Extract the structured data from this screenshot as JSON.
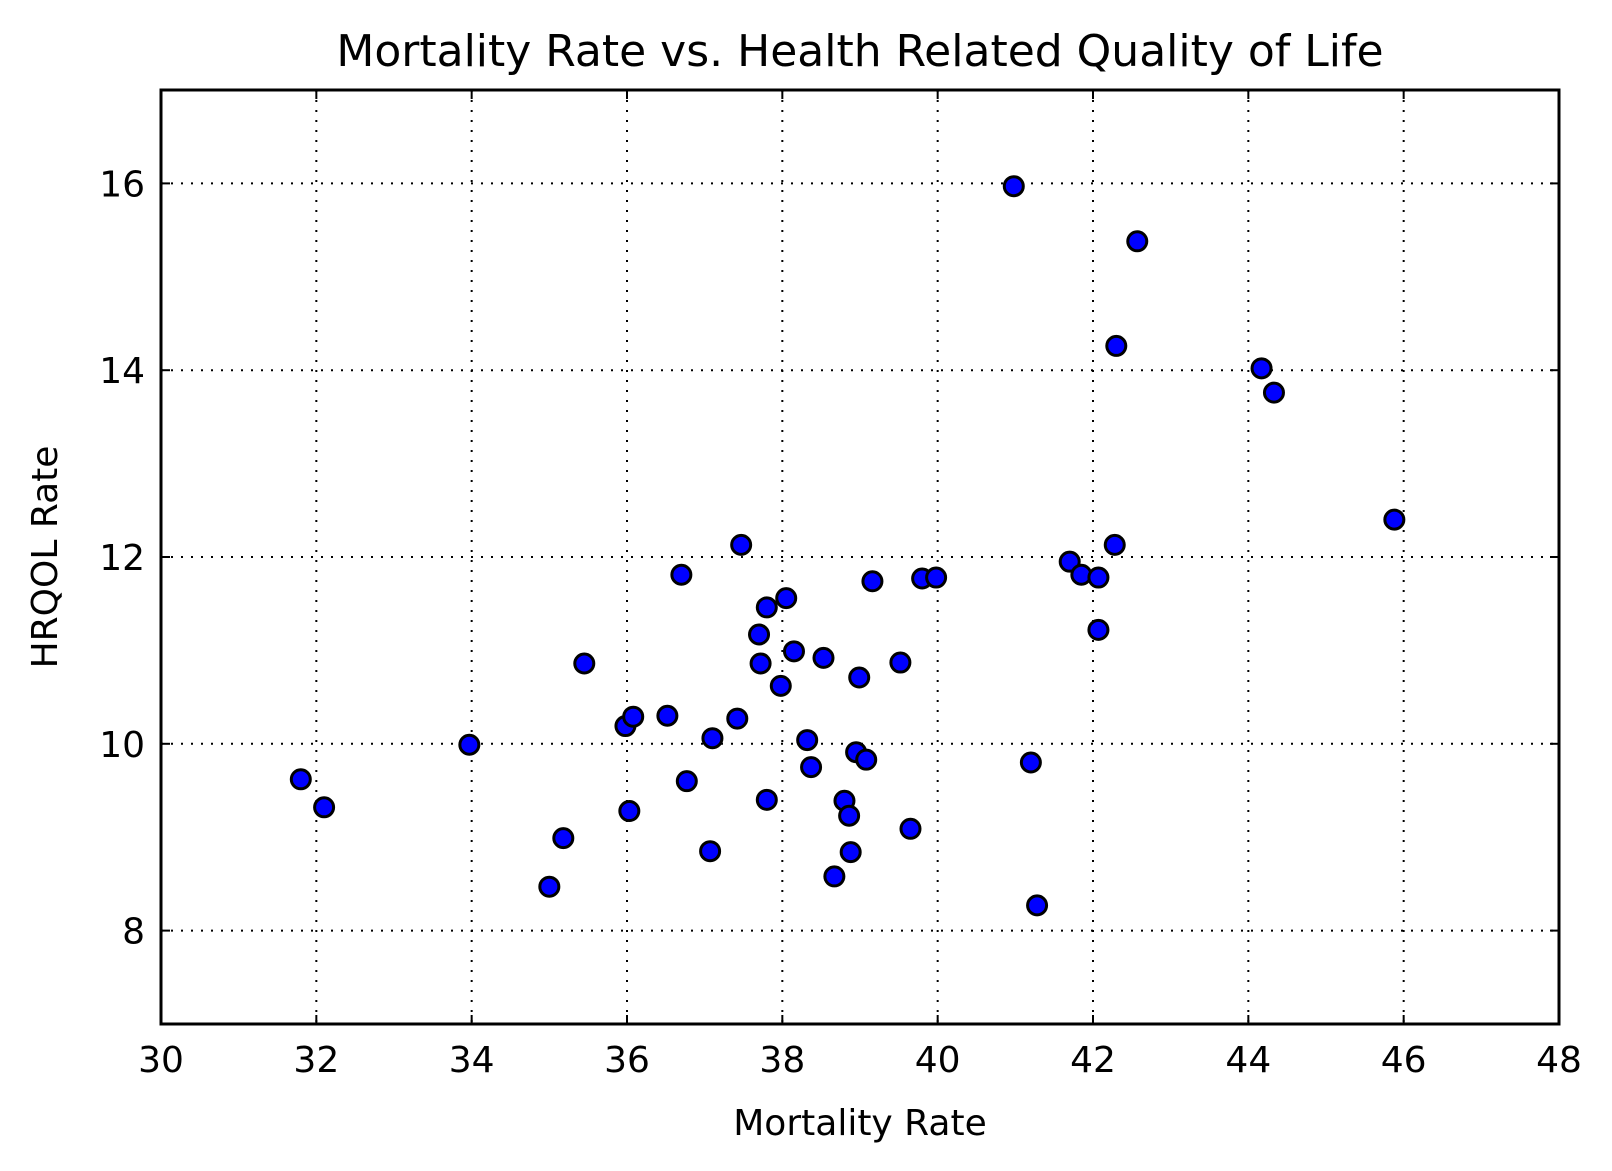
{
  "chart_data": {
    "type": "scatter",
    "title": "Mortality Rate vs. Health Related Quality of Life",
    "xlabel": "Mortality Rate",
    "ylabel": "HRQOL Rate",
    "xlim": [
      30,
      48
    ],
    "ylim": [
      7,
      17
    ],
    "xticks": [
      30,
      32,
      34,
      36,
      38,
      40,
      42,
      44,
      46,
      48
    ],
    "yticks": [
      8,
      10,
      12,
      14,
      16
    ],
    "grid": true,
    "legend": "none",
    "marker_color": "#0000ff",
    "marker_edge_color": "#000000",
    "points": [
      {
        "x": 31.8,
        "y": 9.62
      },
      {
        "x": 32.1,
        "y": 9.32
      },
      {
        "x": 33.97,
        "y": 9.99
      },
      {
        "x": 35.0,
        "y": 8.47
      },
      {
        "x": 35.18,
        "y": 8.99
      },
      {
        "x": 35.45,
        "y": 10.86
      },
      {
        "x": 35.98,
        "y": 10.19
      },
      {
        "x": 36.08,
        "y": 10.29
      },
      {
        "x": 36.03,
        "y": 9.28
      },
      {
        "x": 36.52,
        "y": 10.3
      },
      {
        "x": 36.7,
        "y": 11.81
      },
      {
        "x": 36.77,
        "y": 9.6
      },
      {
        "x": 37.07,
        "y": 8.85
      },
      {
        "x": 37.1,
        "y": 10.06
      },
      {
        "x": 37.42,
        "y": 10.27
      },
      {
        "x": 37.47,
        "y": 12.13
      },
      {
        "x": 37.7,
        "y": 11.17
      },
      {
        "x": 37.72,
        "y": 10.86
      },
      {
        "x": 37.8,
        "y": 11.46
      },
      {
        "x": 37.8,
        "y": 9.4
      },
      {
        "x": 37.98,
        "y": 10.62
      },
      {
        "x": 38.05,
        "y": 11.56
      },
      {
        "x": 38.15,
        "y": 10.99
      },
      {
        "x": 38.32,
        "y": 10.04
      },
      {
        "x": 38.37,
        "y": 9.75
      },
      {
        "x": 38.53,
        "y": 10.92
      },
      {
        "x": 38.67,
        "y": 8.58
      },
      {
        "x": 38.8,
        "y": 9.39
      },
      {
        "x": 38.86,
        "y": 9.23
      },
      {
        "x": 38.88,
        "y": 8.84
      },
      {
        "x": 38.95,
        "y": 9.91
      },
      {
        "x": 38.99,
        "y": 10.71
      },
      {
        "x": 39.08,
        "y": 9.83
      },
      {
        "x": 39.16,
        "y": 11.74
      },
      {
        "x": 39.52,
        "y": 10.87
      },
      {
        "x": 39.65,
        "y": 9.09
      },
      {
        "x": 39.8,
        "y": 11.77
      },
      {
        "x": 39.98,
        "y": 11.78
      },
      {
        "x": 40.98,
        "y": 15.97
      },
      {
        "x": 41.2,
        "y": 9.8
      },
      {
        "x": 41.28,
        "y": 8.27
      },
      {
        "x": 41.7,
        "y": 11.95
      },
      {
        "x": 41.85,
        "y": 11.81
      },
      {
        "x": 42.07,
        "y": 11.78
      },
      {
        "x": 42.07,
        "y": 11.22
      },
      {
        "x": 42.28,
        "y": 12.13
      },
      {
        "x": 42.3,
        "y": 14.26
      },
      {
        "x": 42.57,
        "y": 15.38
      },
      {
        "x": 44.17,
        "y": 14.02
      },
      {
        "x": 44.33,
        "y": 13.76
      },
      {
        "x": 45.88,
        "y": 12.4
      }
    ]
  }
}
